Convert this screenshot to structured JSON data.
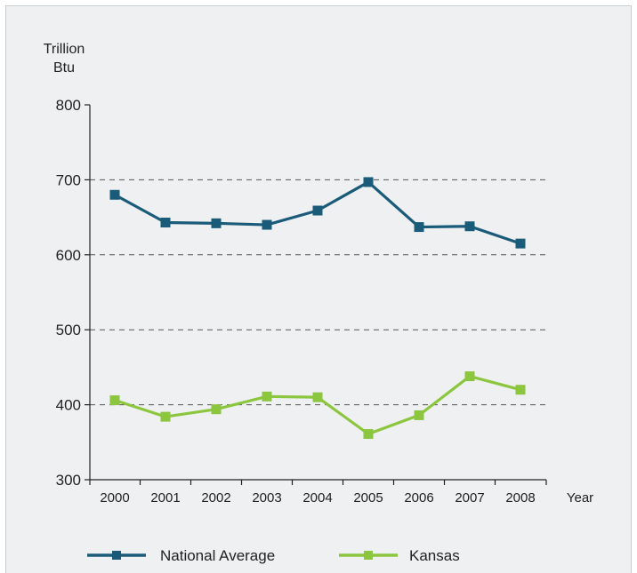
{
  "chart_data": {
    "type": "line",
    "ylabel_line1": "Trillion",
    "ylabel_line2": "Btu",
    "xlabel": "Year",
    "ylim": [
      300,
      800
    ],
    "yticks": [
      300,
      400,
      500,
      600,
      700,
      800
    ],
    "grid": "dashed at 400, 500, 600, 700",
    "legend_position": "bottom",
    "categories": [
      "2000",
      "2001",
      "2002",
      "2003",
      "2004",
      "2005",
      "2006",
      "2007",
      "2008"
    ],
    "series": [
      {
        "name": "National Average",
        "color": "#1a5b7a",
        "values": [
          680,
          643,
          642,
          640,
          659,
          697,
          637,
          638,
          615
        ]
      },
      {
        "name": "Kansas",
        "color": "#8cc63f",
        "values": [
          406,
          384,
          394,
          411,
          410,
          361,
          386,
          438,
          420
        ]
      }
    ]
  }
}
